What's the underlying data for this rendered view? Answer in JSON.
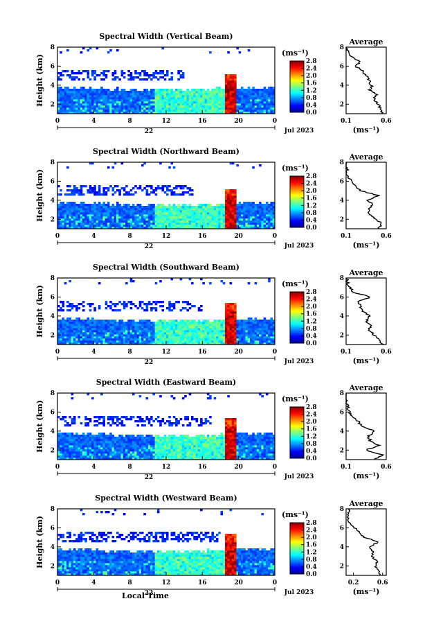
{
  "figure": {
    "panels": [
      {
        "title": "Spectral Width (Vertical Beam)"
      },
      {
        "title": "Spectral Width (Northward Beam)"
      },
      {
        "title": "Spectral Width (Southward Beam)"
      },
      {
        "title": "Spectral Width (Eastward Beam)"
      },
      {
        "title": "Spectral Width (Westward Beam)"
      }
    ],
    "ylabel": "Height (km)",
    "xlabel": "Local Time",
    "colorbar_unit": "(ms⁻¹)",
    "date_label": "Jul 2023",
    "day_label": "22",
    "average_title": "Average",
    "average_unit": "(ms⁻¹)"
  },
  "chart_data": [
    {
      "type": "heatmap",
      "title": "Spectral Width (Vertical Beam)",
      "ylabel": "Height (km)",
      "x_ticks": [
        "0",
        "4",
        "8",
        "12",
        "16",
        "20",
        "0"
      ],
      "y_ticks": [
        "2",
        "4",
        "6",
        "8"
      ],
      "xlim_hours": [
        0,
        24
      ],
      "ylim_km": [
        1,
        8
      ],
      "colorbar": {
        "ticks": [
          "0.0",
          "0.4",
          "0.8",
          "1.2",
          "1.6",
          "2.0",
          "2.4",
          "2.8"
        ],
        "range": [
          0,
          2.8
        ]
      },
      "average_profile": {
        "title": "Average",
        "x_ticks": [
          "0.1",
          "0.6"
        ],
        "xlim": [
          0.1,
          0.6
        ],
        "y_ticks": [
          "2",
          "4",
          "6",
          "8"
        ],
        "heights_km": [
          1.0,
          1.5,
          2.0,
          2.5,
          3.0,
          3.5,
          4.0,
          4.5,
          5.0,
          5.5,
          6.0,
          6.5,
          7.0,
          7.5,
          8.0
        ],
        "values": [
          0.55,
          0.52,
          0.5,
          0.45,
          0.48,
          0.4,
          0.42,
          0.38,
          0.36,
          0.3,
          0.22,
          0.28,
          0.15,
          0.12,
          0.11
        ]
      }
    },
    {
      "type": "heatmap",
      "title": "Spectral Width (Northward Beam)",
      "ylabel": "Height (km)",
      "x_ticks": [
        "0",
        "4",
        "8",
        "12",
        "16",
        "20",
        "0"
      ],
      "y_ticks": [
        "2",
        "4",
        "6",
        "8"
      ],
      "xlim_hours": [
        0,
        24
      ],
      "ylim_km": [
        1,
        8
      ],
      "colorbar": {
        "ticks": [
          "0.0",
          "0.4",
          "0.8",
          "1.2",
          "1.6",
          "2.0",
          "2.4",
          "2.8"
        ],
        "range": [
          0,
          2.8
        ]
      },
      "average_profile": {
        "title": "Average",
        "x_ticks": [
          "0.1",
          "0.6"
        ],
        "xlim": [
          0.1,
          0.6
        ],
        "y_ticks": [
          "2",
          "4",
          "6",
          "8"
        ],
        "heights_km": [
          1.0,
          1.5,
          2.0,
          2.5,
          3.0,
          3.5,
          4.0,
          4.5,
          5.0,
          5.5,
          6.0,
          6.5,
          7.0,
          7.5,
          8.0
        ],
        "values": [
          0.5,
          0.55,
          0.48,
          0.4,
          0.38,
          0.44,
          0.36,
          0.5,
          0.28,
          0.22,
          0.18,
          0.12,
          0.11,
          0.11,
          0.1
        ]
      }
    },
    {
      "type": "heatmap",
      "title": "Spectral Width (Southward Beam)",
      "ylabel": "Height (km)",
      "x_ticks": [
        "0",
        "4",
        "8",
        "12",
        "16",
        "20",
        "0"
      ],
      "y_ticks": [
        "2",
        "4",
        "6",
        "8"
      ],
      "xlim_hours": [
        0,
        24
      ],
      "ylim_km": [
        1,
        8
      ],
      "colorbar": {
        "ticks": [
          "0.0",
          "0.4",
          "0.8",
          "1.2",
          "1.6",
          "2.0",
          "2.4",
          "2.8"
        ],
        "range": [
          0,
          2.8
        ]
      },
      "average_profile": {
        "title": "Average",
        "x_ticks": [
          "0.1",
          "0.6"
        ],
        "xlim": [
          0.1,
          0.6
        ],
        "y_ticks": [
          "2",
          "4",
          "6",
          "8"
        ],
        "heights_km": [
          1.0,
          1.5,
          2.0,
          2.5,
          3.0,
          3.5,
          4.0,
          4.5,
          5.0,
          5.5,
          6.0,
          6.5,
          7.0,
          7.5,
          8.0
        ],
        "values": [
          0.55,
          0.5,
          0.45,
          0.38,
          0.42,
          0.35,
          0.4,
          0.3,
          0.28,
          0.24,
          0.4,
          0.2,
          0.14,
          0.12,
          0.11
        ]
      }
    },
    {
      "type": "heatmap",
      "title": "Spectral Width (Eastward Beam)",
      "ylabel": "Height (km)",
      "x_ticks": [
        "0",
        "4",
        "8",
        "12",
        "16",
        "20",
        "0"
      ],
      "y_ticks": [
        "2",
        "4",
        "6",
        "8"
      ],
      "xlim_hours": [
        0,
        24
      ],
      "ylim_km": [
        1,
        8
      ],
      "colorbar": {
        "ticks": [
          "0.0",
          "0.4",
          "0.8",
          "1.2",
          "1.6",
          "2.0",
          "2.4",
          "2.8"
        ],
        "range": [
          0,
          2.8
        ]
      },
      "average_profile": {
        "title": "Average",
        "x_ticks": [
          "0.1",
          "0.6"
        ],
        "xlim": [
          0.1,
          0.6
        ],
        "y_ticks": [
          "2",
          "4",
          "6",
          "8"
        ],
        "heights_km": [
          1.0,
          1.5,
          2.0,
          2.5,
          3.0,
          3.5,
          4.0,
          4.5,
          5.0,
          5.5,
          6.0,
          6.5,
          7.0,
          7.5,
          8.0
        ],
        "values": [
          0.45,
          0.55,
          0.35,
          0.5,
          0.4,
          0.38,
          0.45,
          0.3,
          0.25,
          0.18,
          0.14,
          0.12,
          0.11,
          0.1,
          0.1
        ]
      }
    },
    {
      "type": "heatmap",
      "title": "Spectral Width (Westward Beam)",
      "ylabel": "Height (km)",
      "xlabel": "Local Time",
      "x_ticks": [
        "0",
        "4",
        "8",
        "12",
        "16",
        "20",
        "0"
      ],
      "y_ticks": [
        "2",
        "4",
        "6",
        "8"
      ],
      "xlim_hours": [
        0,
        24
      ],
      "ylim_km": [
        1,
        8
      ],
      "colorbar": {
        "ticks": [
          "0.0",
          "0.4",
          "0.8",
          "1.2",
          "1.6",
          "2.0",
          "2.4",
          "2.8"
        ],
        "range": [
          0,
          2.8
        ]
      },
      "average_profile": {
        "title": "Average",
        "x_ticks": [
          "0.2",
          "0.6"
        ],
        "xlim": [
          0.1,
          0.65
        ],
        "y_ticks": [
          "2",
          "4",
          "6",
          "8"
        ],
        "heights_km": [
          1.0,
          1.5,
          2.0,
          2.5,
          3.0,
          3.5,
          4.0,
          4.5,
          5.0,
          5.5,
          6.0,
          6.5,
          7.0,
          7.5,
          8.0
        ],
        "values": [
          0.58,
          0.55,
          0.5,
          0.52,
          0.45,
          0.48,
          0.42,
          0.55,
          0.35,
          0.3,
          0.22,
          0.16,
          0.12,
          0.14,
          0.15
        ]
      }
    }
  ]
}
